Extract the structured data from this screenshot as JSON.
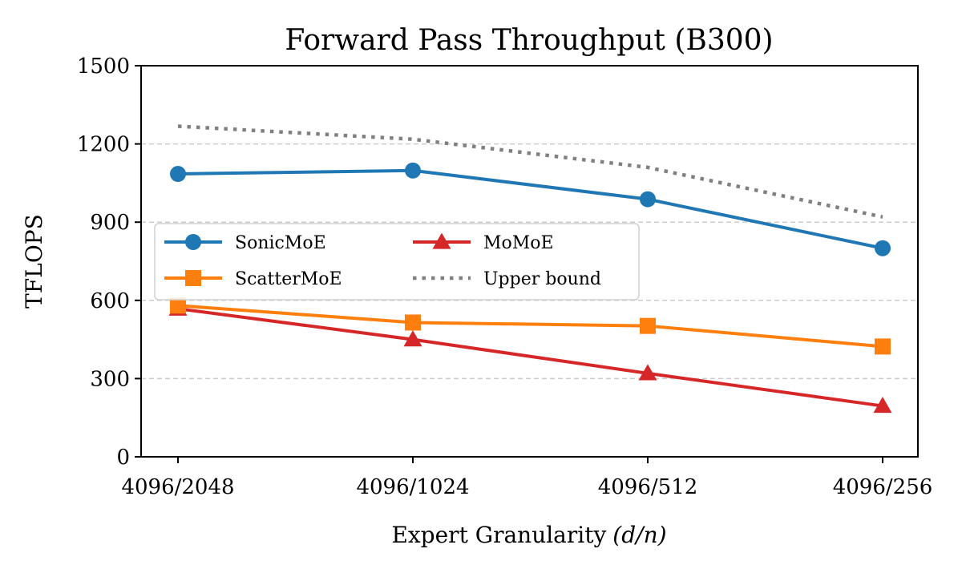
{
  "chart_data": {
    "type": "line",
    "title": "Forward Pass Throughput (B300)",
    "xlabel": "Expert Granularity",
    "xlabel_math": "(d/n)",
    "ylabel": "TFLOPS",
    "categories": [
      "4096/2048",
      "4096/1024",
      "4096/512",
      "4096/256"
    ],
    "ylim": [
      0,
      1500
    ],
    "yticks": [
      0,
      300,
      600,
      900,
      1200,
      1500
    ],
    "grid": "horizontal dashed",
    "legend_position": "center-left",
    "series": [
      {
        "name": "SonicMoE",
        "values": [
          1085,
          1098,
          988,
          800
        ],
        "color": "#1f77b4",
        "marker": "circle",
        "style": "solid"
      },
      {
        "name": "ScatterMoE",
        "values": [
          580,
          515,
          502,
          423
        ],
        "color": "#ff7f0e",
        "marker": "square",
        "style": "solid"
      },
      {
        "name": "MoMoE",
        "values": [
          568,
          450,
          320,
          195
        ],
        "color": "#d62728",
        "marker": "triangle",
        "style": "solid"
      },
      {
        "name": "Upper bound",
        "values": [
          1268,
          1218,
          1110,
          920
        ],
        "color": "#808080",
        "marker": "none",
        "style": "dotted"
      }
    ]
  }
}
